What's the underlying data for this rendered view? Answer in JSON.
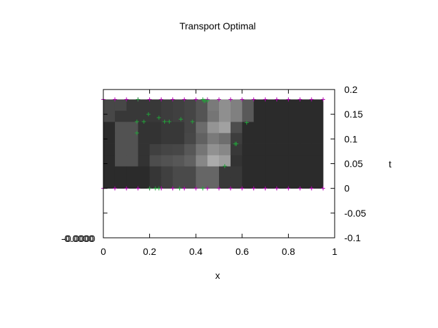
{
  "chart_data": {
    "type": "heatmap",
    "title": "Transport Optimal",
    "xlabel": "x",
    "ylabel": "t",
    "xlim": [
      0,
      1
    ],
    "ylim": [
      -0.1,
      0.2
    ],
    "x_ticks": [
      "0",
      "0.2",
      "0.4",
      "0.6",
      "0.8",
      "1"
    ],
    "y_ticks": [
      "-0.1",
      "-0.05",
      "0",
      "0.05",
      "0.1",
      "0.15",
      "0.2"
    ],
    "colorbar_label": "-0.0000",
    "x_edges": [
      0,
      0.05,
      0.1,
      0.15,
      0.2,
      0.25,
      0.3,
      0.35,
      0.4,
      0.45,
      0.5,
      0.55,
      0.6,
      0.65,
      0.7,
      0.75,
      0.8,
      0.85,
      0.9,
      0.95
    ],
    "t_edges": [
      0,
      0.0225,
      0.045,
      0.0675,
      0.09,
      0.1125,
      0.135,
      0.1575,
      0.18
    ],
    "intensity_rows": [
      [
        0.17,
        0.17,
        0.17,
        0.17,
        0.21,
        0.25,
        0.29,
        0.29,
        0.4,
        0.4,
        0.22,
        0.22,
        0.17,
        0.17,
        0.17,
        0.17,
        0.17,
        0.17,
        0.17
      ],
      [
        0.17,
        0.17,
        0.17,
        0.17,
        0.21,
        0.25,
        0.29,
        0.29,
        0.4,
        0.4,
        0.22,
        0.22,
        0.17,
        0.17,
        0.17,
        0.17,
        0.17,
        0.17,
        0.17
      ],
      [
        0.17,
        0.32,
        0.32,
        0.2,
        0.3,
        0.32,
        0.34,
        0.38,
        0.53,
        0.67,
        0.62,
        0.2,
        0.17,
        0.17,
        0.17,
        0.17,
        0.17,
        0.17,
        0.17
      ],
      [
        0.17,
        0.32,
        0.32,
        0.2,
        0.25,
        0.27,
        0.28,
        0.34,
        0.46,
        0.57,
        0.53,
        0.22,
        0.17,
        0.17,
        0.17,
        0.17,
        0.17,
        0.17,
        0.17
      ],
      [
        0.17,
        0.32,
        0.32,
        0.2,
        0.2,
        0.22,
        0.22,
        0.28,
        0.38,
        0.48,
        0.43,
        0.24,
        0.17,
        0.17,
        0.17,
        0.17,
        0.17,
        0.17,
        0.17
      ],
      [
        0.17,
        0.32,
        0.32,
        0.2,
        0.2,
        0.22,
        0.22,
        0.27,
        0.42,
        0.58,
        0.63,
        0.3,
        0.17,
        0.17,
        0.17,
        0.17,
        0.17,
        0.17,
        0.17
      ],
      [
        0.28,
        0.22,
        0.22,
        0.22,
        0.22,
        0.24,
        0.25,
        0.27,
        0.33,
        0.46,
        0.56,
        0.5,
        0.35,
        0.17,
        0.17,
        0.17,
        0.17,
        0.17,
        0.17
      ],
      [
        0.28,
        0.28,
        0.22,
        0.22,
        0.22,
        0.24,
        0.25,
        0.27,
        0.33,
        0.48,
        0.56,
        0.5,
        0.35,
        0.17,
        0.17,
        0.17,
        0.17,
        0.17,
        0.17
      ]
    ],
    "green_markers": [
      [
        0.145,
        0.135
      ],
      [
        0.175,
        0.135
      ],
      [
        0.195,
        0.15
      ],
      [
        0.24,
        0.143
      ],
      [
        0.265,
        0.135
      ],
      [
        0.285,
        0.135
      ],
      [
        0.335,
        0.14
      ],
      [
        0.385,
        0.135
      ],
      [
        0.145,
        0.112
      ],
      [
        0.57,
        0.09
      ],
      [
        0.575,
        0.09
      ],
      [
        0.525,
        0.045
      ],
      [
        0.62,
        0.133
      ],
      [
        0.44,
        0.177
      ],
      [
        0.435,
        0.177
      ],
      [
        0.45,
        0.177
      ],
      [
        0.225,
        0.0
      ],
      [
        0.24,
        0.0
      ],
      [
        0.33,
        0.0
      ],
      [
        0.43,
        0.0
      ],
      [
        0.43,
        0.18
      ],
      [
        0.15,
        0.18
      ],
      [
        0.2,
        0.0
      ]
    ],
    "magenta_marker_x": [
      0,
      0.05,
      0.1,
      0.15,
      0.2,
      0.25,
      0.3,
      0.35,
      0.4,
      0.45,
      0.5,
      0.55,
      0.6,
      0.65,
      0.7,
      0.75,
      0.8,
      0.85,
      0.9,
      0.95
    ],
    "magenta_marker_t": [
      0.18,
      0.0
    ],
    "grid": false,
    "legend": "none"
  }
}
